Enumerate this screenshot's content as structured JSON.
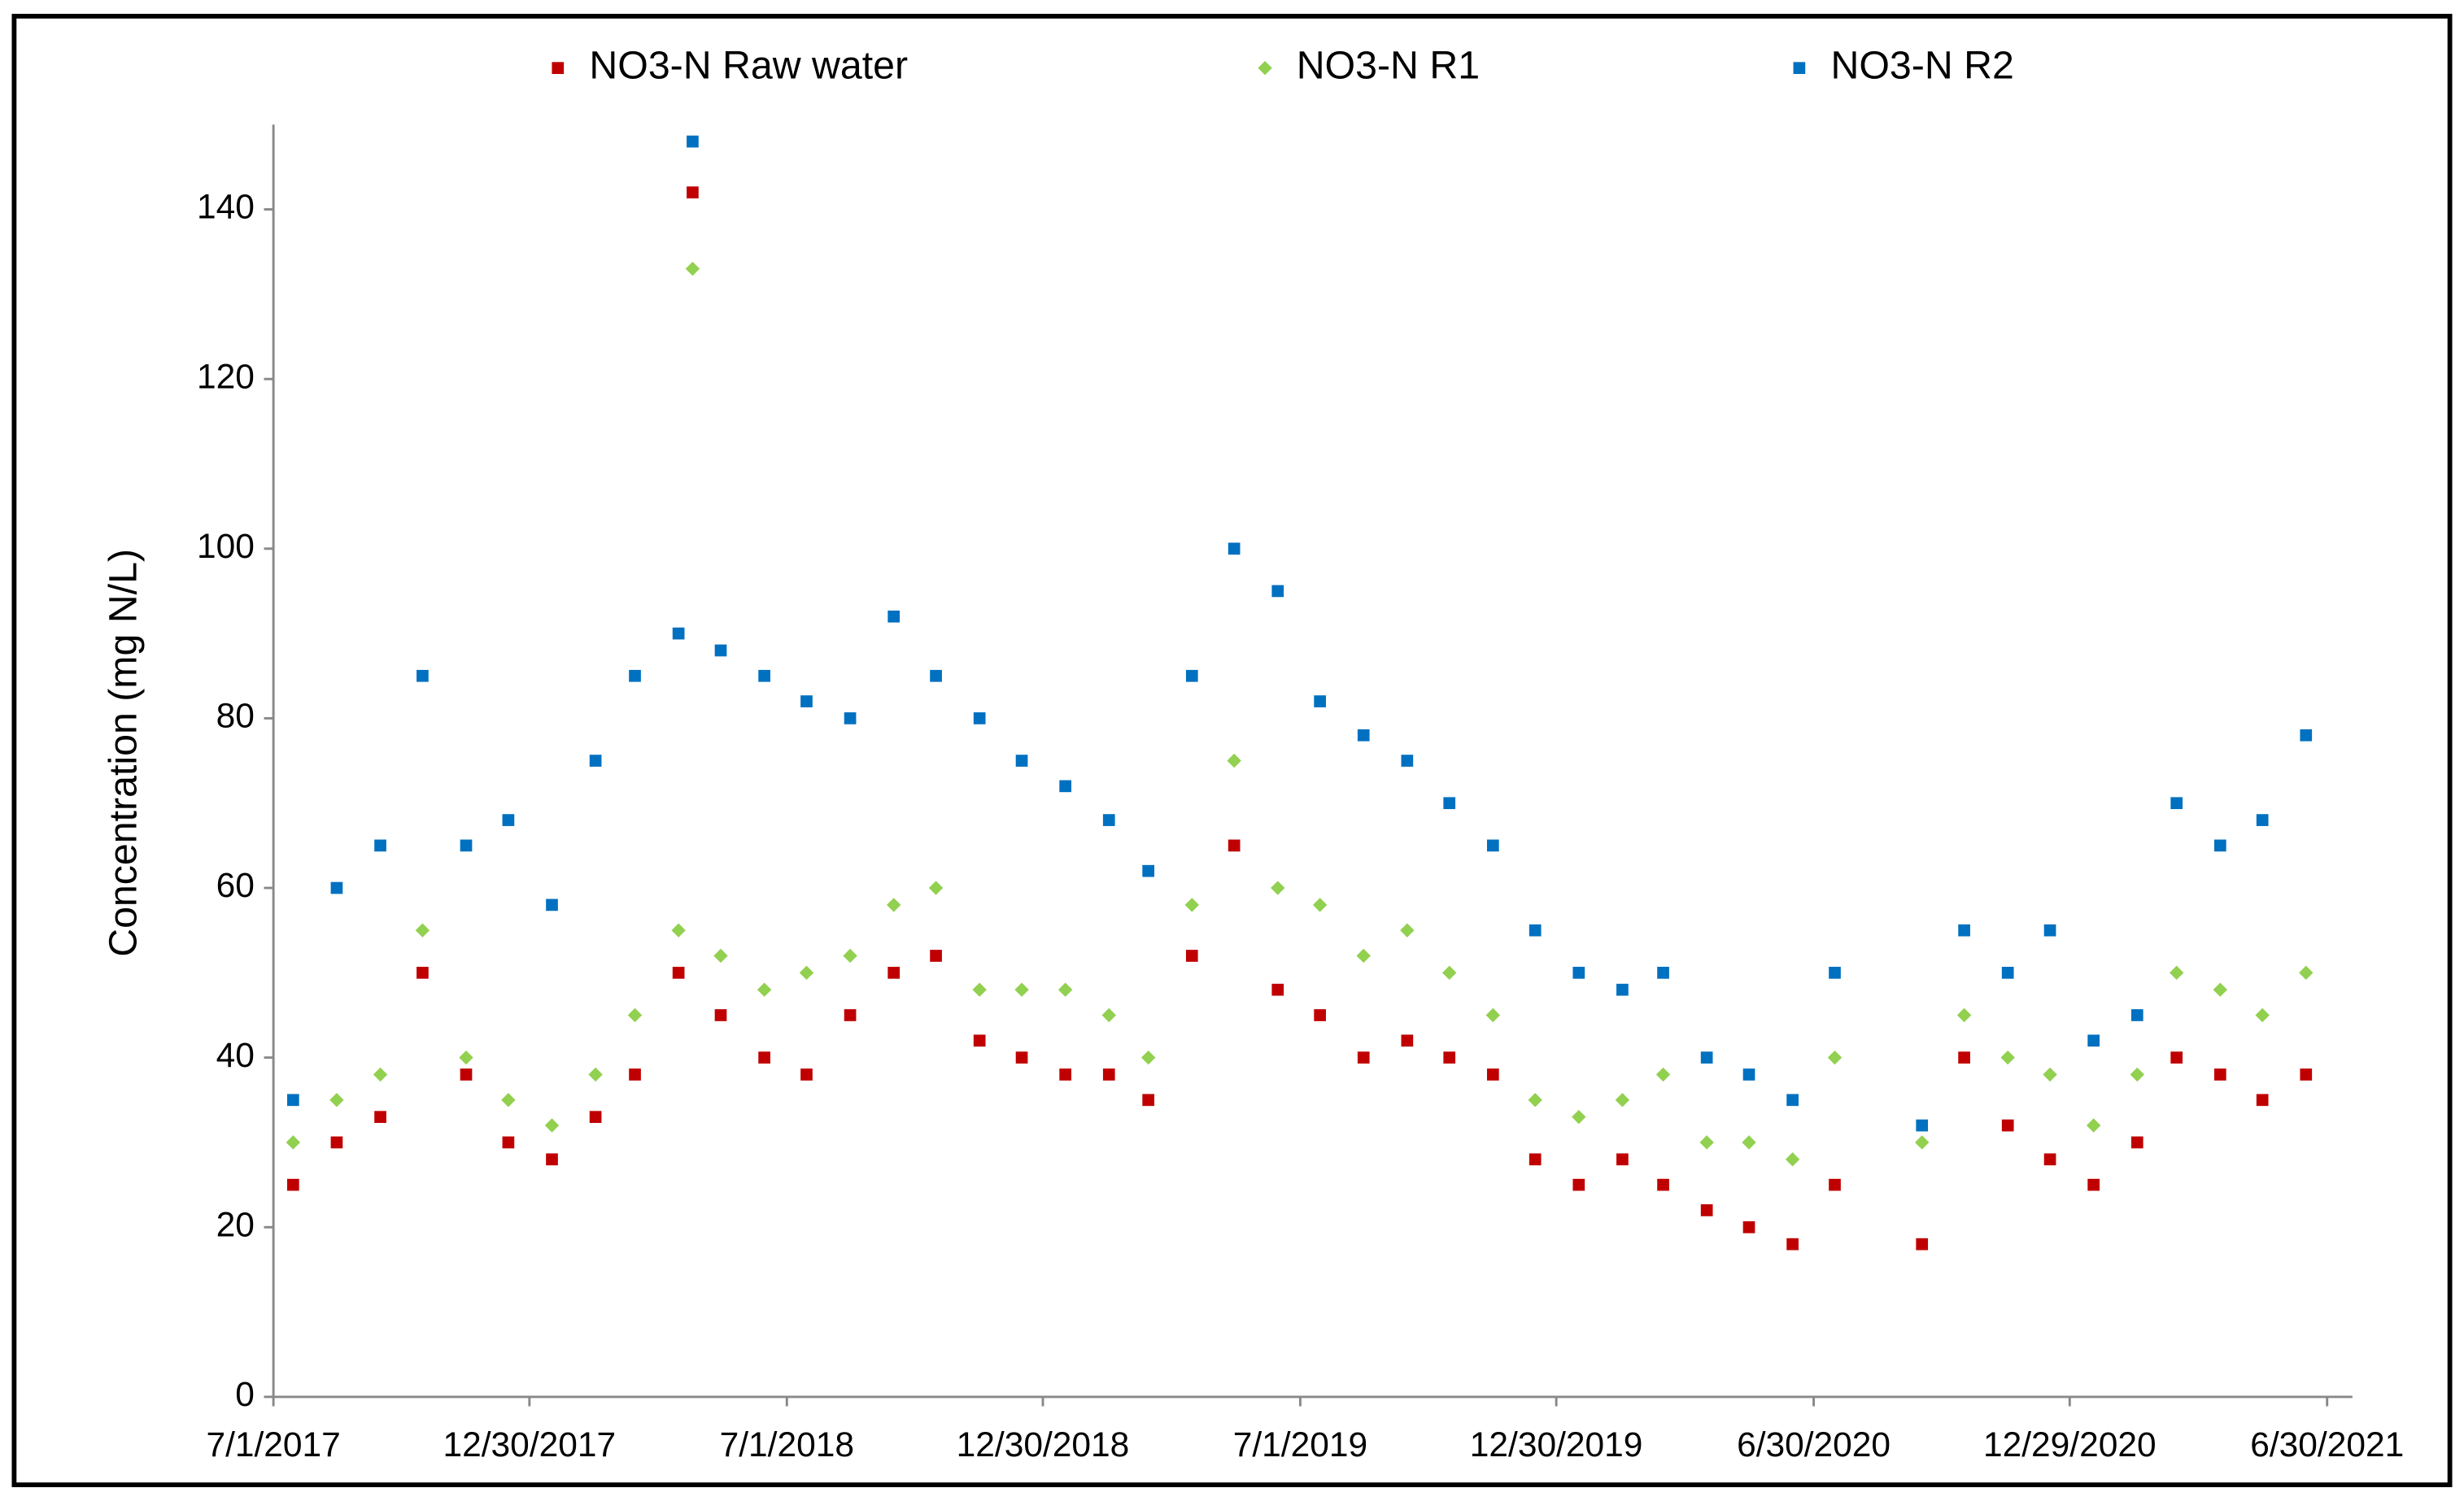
{
  "chart_data": {
    "type": "scatter",
    "y_label": "Concentration (mg N/L)",
    "x": [
      "2017-07-15",
      "2017-08-15",
      "2017-09-15",
      "2017-10-15",
      "2017-11-15",
      "2017-12-15",
      "2018-01-15",
      "2018-02-15",
      "2018-03-15",
      "2018-04-15",
      "2018-04-25",
      "2018-05-15",
      "2018-06-15",
      "2018-07-15",
      "2018-08-15",
      "2018-09-15",
      "2018-10-15",
      "2018-11-15",
      "2018-12-15",
      "2019-01-15",
      "2019-02-15",
      "2019-03-15",
      "2019-04-15",
      "2019-05-15",
      "2019-06-15",
      "2019-07-15",
      "2019-08-15",
      "2019-09-15",
      "2019-10-15",
      "2019-11-15",
      "2019-12-15",
      "2020-01-15",
      "2020-02-15",
      "2020-03-15",
      "2020-04-15",
      "2020-05-15",
      "2020-06-15",
      "2020-07-15",
      "2020-08-15",
      "2020-09-15",
      "2020-10-15",
      "2020-11-15",
      "2020-12-15",
      "2021-01-15",
      "2021-02-15",
      "2021-03-15",
      "2021-04-15",
      "2021-05-15",
      "2021-06-15"
    ],
    "series": [
      {
        "name": "NO3-N Raw water",
        "color": "#c00000",
        "marker": "square",
        "values": [
          25,
          30,
          33,
          50,
          38,
          30,
          28,
          33,
          38,
          50,
          142,
          45,
          40,
          38,
          45,
          50,
          52,
          42,
          40,
          38,
          38,
          35,
          52,
          65,
          48,
          45,
          40,
          42,
          40,
          38,
          28,
          25,
          28,
          25,
          22,
          20,
          18,
          25,
          null,
          18,
          40,
          32,
          28,
          25,
          30,
          40,
          38,
          35,
          38
        ]
      },
      {
        "name": "NO3-N R1",
        "color": "#92d050",
        "marker": "diamond",
        "values": [
          30,
          35,
          38,
          55,
          40,
          35,
          32,
          38,
          45,
          55,
          133,
          52,
          48,
          50,
          52,
          58,
          60,
          48,
          48,
          48,
          45,
          40,
          58,
          75,
          60,
          58,
          52,
          55,
          50,
          45,
          35,
          33,
          35,
          38,
          30,
          30,
          28,
          40,
          null,
          30,
          45,
          40,
          38,
          32,
          38,
          50,
          48,
          45,
          50
        ]
      },
      {
        "name": "NO3-N R2",
        "color": "#0070c0",
        "marker": "square",
        "values": [
          35,
          60,
          65,
          85,
          65,
          68,
          58,
          75,
          85,
          90,
          148,
          88,
          85,
          82,
          80,
          92,
          85,
          80,
          75,
          72,
          68,
          62,
          85,
          100,
          95,
          82,
          78,
          75,
          70,
          65,
          55,
          50,
          48,
          50,
          40,
          38,
          35,
          50,
          null,
          32,
          55,
          50,
          55,
          42,
          45,
          70,
          65,
          68,
          78
        ]
      }
    ],
    "xlim": [
      "2017-07-01",
      "2021-07-18"
    ],
    "xticks": [
      {
        "value": "2017-07-01",
        "label": "7/1/2017"
      },
      {
        "value": "2017-12-30",
        "label": "12/30/2017"
      },
      {
        "value": "2018-07-01",
        "label": "7/1/2018"
      },
      {
        "value": "2018-12-30",
        "label": "12/30/2018"
      },
      {
        "value": "2019-07-01",
        "label": "7/1/2019"
      },
      {
        "value": "2019-12-30",
        "label": "12/30/2019"
      },
      {
        "value": "2020-06-30",
        "label": "6/30/2020"
      },
      {
        "value": "2020-12-29",
        "label": "12/29/2020"
      },
      {
        "value": "2021-06-30",
        "label": "6/30/2021"
      }
    ],
    "ylim": [
      0,
      150
    ],
    "yticks": [
      0,
      20,
      40,
      60,
      80,
      100,
      120,
      140
    ],
    "grid": false,
    "legend": "top"
  }
}
